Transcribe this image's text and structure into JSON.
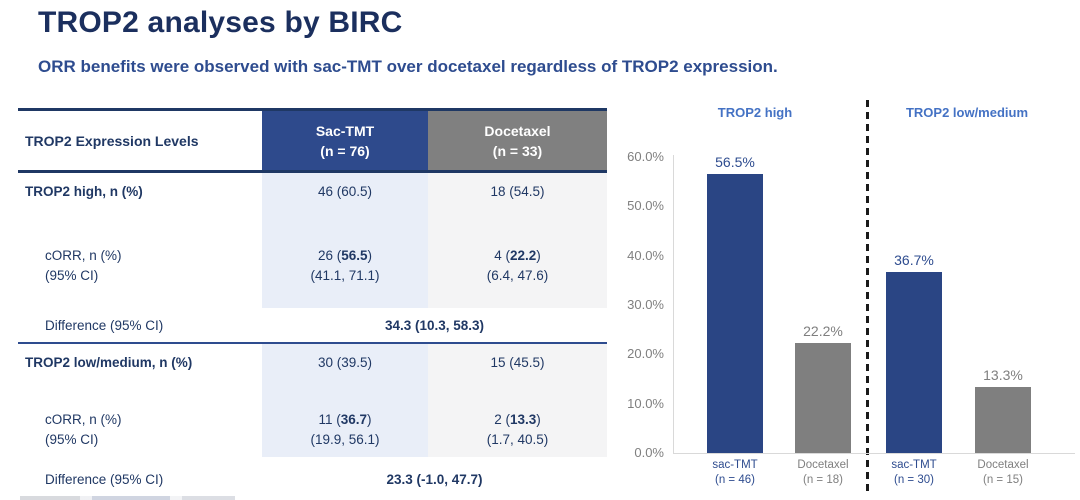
{
  "page": {
    "title": "TROP2 analyses by BIRC",
    "subtitle": "ORR benefits were observed with sac-TMT over docetaxel regardless of TROP2 expression."
  },
  "table": {
    "col1_header": "TROP2 Expression Levels",
    "sac_header": {
      "name": "Sac-TMT",
      "n": "(n = 76)"
    },
    "doc_header": {
      "name": "Docetaxel",
      "n": "(n = 33)"
    },
    "high": {
      "label": "TROP2 high, n (%)",
      "sac_n": "46 (60.5)",
      "doc_n": "18 (54.5)",
      "corr_label": "cORR, n (%)",
      "ci_label": "(95% CI)",
      "sac_corr": {
        "pre": "26 (",
        "bold": "56.5",
        "post": ")"
      },
      "sac_ci": "(41.1, 71.1)",
      "doc_corr": {
        "pre": "4 (",
        "bold": "22.2",
        "post": ")"
      },
      "doc_ci": "(6.4, 47.6)",
      "diff_label": "Difference (95% CI)",
      "diff_value": "34.3 (10.3, 58.3)"
    },
    "low": {
      "label": "TROP2 low/medium, n (%)",
      "sac_n": "30 (39.5)",
      "doc_n": "15 (45.5)",
      "corr_label": "cORR, n (%)",
      "ci_label": "(95% CI)",
      "sac_corr": {
        "pre": "11 (",
        "bold": "36.7",
        "post": ")"
      },
      "sac_ci": "(19.9, 56.1)",
      "doc_corr": {
        "pre": "2 (",
        "bold": "13.3",
        "post": ")"
      },
      "doc_ci": "(1.7, 40.5)",
      "diff_label": "Difference (95% CI)",
      "diff_value": "23.3 (-1.0, 47.7)"
    }
  },
  "chart_data": {
    "type": "bar",
    "title": "",
    "xlabel": "",
    "ylabel": "",
    "ylim": [
      0,
      60
    ],
    "yticks": [
      "0.0%",
      "10.0%",
      "20.0%",
      "30.0%",
      "40.0%",
      "50.0%",
      "60.0%"
    ],
    "grid": false,
    "legend_position": "none",
    "groups": [
      {
        "label": "TROP2 high",
        "bars": [
          {
            "series": "sac-TMT",
            "x_line1": "sac-TMT",
            "x_line2": "(n = 46)",
            "value": 56.5,
            "display": "56.5%"
          },
          {
            "series": "Docetaxel",
            "x_line1": "Docetaxel",
            "x_line2": "(n = 18)",
            "value": 22.2,
            "display": "22.2%"
          }
        ]
      },
      {
        "label": "TROP2 low/medium",
        "bars": [
          {
            "series": "sac-TMT",
            "x_line1": "sac-TMT",
            "x_line2": "(n = 30)",
            "value": 36.7,
            "display": "36.7%"
          },
          {
            "series": "Docetaxel",
            "x_line1": "Docetaxel",
            "x_line2": "(n = 15)",
            "value": 13.3,
            "display": "13.3%"
          }
        ]
      }
    ],
    "colors": {
      "sac": "#2a4584",
      "doc": "#7f7f7f",
      "sac_text": "#2e4c8f",
      "doc_text": "#7f7f7f"
    }
  }
}
